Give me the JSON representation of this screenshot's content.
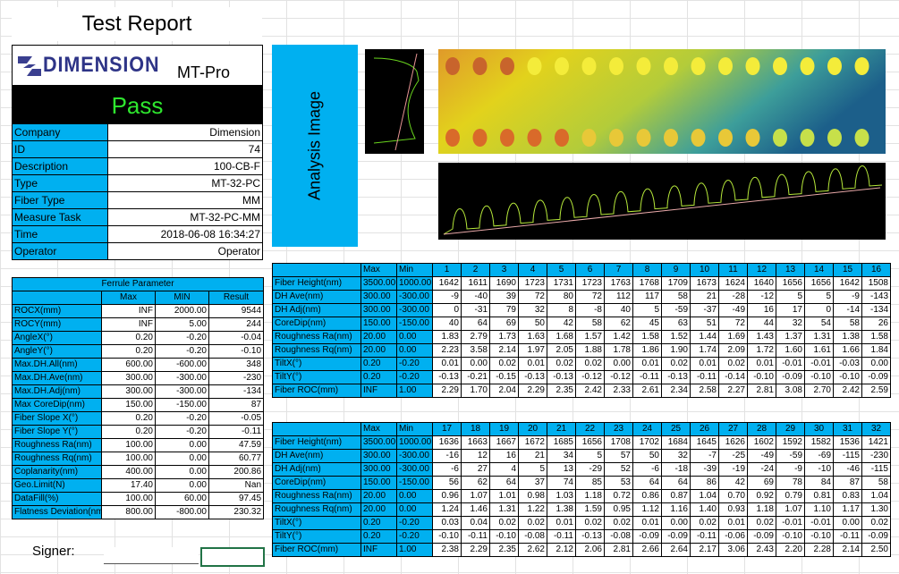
{
  "header": {
    "title": "Test Report",
    "logo": "DIMENSION",
    "model": "MT-Pro",
    "result": "Pass",
    "signer": "Signer:"
  },
  "info": [
    [
      "Company",
      "Dimension"
    ],
    [
      "ID",
      "74"
    ],
    [
      "Description",
      "100-CB-F"
    ],
    [
      "Type",
      "MT-32-PC"
    ],
    [
      "Fiber Type",
      "MM"
    ],
    [
      "Measure Task",
      "MT-32-PC-MM"
    ],
    [
      "Time",
      "2018-06-08 16:34:27"
    ],
    [
      "Operator",
      "Operator"
    ]
  ],
  "analysis_label": "Analysis Image",
  "ferrule": {
    "title": "Ferrule Parameter",
    "columns": [
      "Max",
      "MIN",
      "Result"
    ],
    "rows": [
      [
        "ROCX(mm)",
        "INF",
        "2000.00",
        "9544"
      ],
      [
        "ROCY(mm)",
        "INF",
        "5.00",
        "244"
      ],
      [
        "AngleX(°)",
        "0.20",
        "-0.20",
        "-0.04"
      ],
      [
        "AngleY(°)",
        "0.20",
        "-0.20",
        "-0.10"
      ],
      [
        "Max.DH.All(nm)",
        "600.00",
        "-600.00",
        "348"
      ],
      [
        "Max.DH.Ave(nm)",
        "300.00",
        "-300.00",
        "-230"
      ],
      [
        "Max.DH.Adj(nm)",
        "300.00",
        "-300.00",
        "-134"
      ],
      [
        "Max CoreDip(nm)",
        "150.00",
        "-150.00",
        "87"
      ],
      [
        "Fiber Slope X(°)",
        "0.20",
        "-0.20",
        "-0.05"
      ],
      [
        "Fiber Slope Y(°)",
        "0.20",
        "-0.20",
        "-0.11"
      ],
      [
        "Roughness Ra(nm)",
        "100.00",
        "0.00",
        "47.59"
      ],
      [
        "Roughness Rq(nm)",
        "100.00",
        "0.00",
        "60.77"
      ],
      [
        "Coplanarity(nm)",
        "400.00",
        "0.00",
        "200.86"
      ],
      [
        "Geo.Limit(N)",
        "17.40",
        "0.00",
        "Nan"
      ],
      [
        "DataFill(%)",
        "100.00",
        "60.00",
        "97.45"
      ],
      [
        "Flatness Deviation(nm)",
        "800.00",
        "-800.00",
        "230.32"
      ]
    ]
  },
  "fiber_tables": [
    {
      "columns": [
        "Max",
        "Min",
        "1",
        "2",
        "3",
        "4",
        "5",
        "6",
        "7",
        "8",
        "9",
        "10",
        "11",
        "12",
        "13",
        "14",
        "15",
        "16"
      ],
      "rows": [
        [
          "Fiber Height(nm)",
          "3500.00",
          "1000.00",
          "1642",
          "1611",
          "1690",
          "1723",
          "1731",
          "1723",
          "1763",
          "1768",
          "1709",
          "1673",
          "1624",
          "1640",
          "1656",
          "1656",
          "1642",
          "1508"
        ],
        [
          "DH Ave(nm)",
          "300.00",
          "-300.00",
          "-9",
          "-40",
          "39",
          "72",
          "80",
          "72",
          "112",
          "117",
          "58",
          "21",
          "-28",
          "-12",
          "5",
          "5",
          "-9",
          "-143"
        ],
        [
          "DH Adj(nm)",
          "300.00",
          "-300.00",
          "0",
          "-31",
          "79",
          "32",
          "8",
          "-8",
          "40",
          "5",
          "-59",
          "-37",
          "-49",
          "16",
          "17",
          "0",
          "-14",
          "-134"
        ],
        [
          "CoreDip(nm)",
          "150.00",
          "-150.00",
          "40",
          "64",
          "69",
          "50",
          "42",
          "58",
          "62",
          "45",
          "63",
          "51",
          "72",
          "44",
          "32",
          "54",
          "58",
          "26"
        ],
        [
          "Roughness Ra(nm)",
          "20.00",
          "0.00",
          "1.83",
          "2.79",
          "1.73",
          "1.63",
          "1.68",
          "1.57",
          "1.42",
          "1.58",
          "1.52",
          "1.44",
          "1.69",
          "1.43",
          "1.37",
          "1.31",
          "1.38",
          "1.58"
        ],
        [
          "Roughness Rq(nm)",
          "20.00",
          "0.00",
          "2.23",
          "3.58",
          "2.14",
          "1.97",
          "2.05",
          "1.88",
          "1.78",
          "1.86",
          "1.90",
          "1.74",
          "2.09",
          "1.72",
          "1.60",
          "1.61",
          "1.66",
          "1.84"
        ],
        [
          "TiltX(°)",
          "0.20",
          "-0.20",
          "0.01",
          "0.00",
          "0.02",
          "0.01",
          "0.02",
          "0.02",
          "0.00",
          "0.01",
          "0.02",
          "0.01",
          "0.02",
          "0.01",
          "-0.01",
          "-0.01",
          "-0.03",
          "0.00"
        ],
        [
          "TiltY(°)",
          "0.20",
          "-0.20",
          "-0.13",
          "-0.21",
          "-0.15",
          "-0.13",
          "-0.13",
          "-0.12",
          "-0.12",
          "-0.11",
          "-0.13",
          "-0.11",
          "-0.14",
          "-0.10",
          "-0.09",
          "-0.10",
          "-0.10",
          "-0.09"
        ],
        [
          "Fiber ROC(mm)",
          "INF",
          "1.00",
          "2.29",
          "1.70",
          "2.04",
          "2.29",
          "2.35",
          "2.42",
          "2.33",
          "2.61",
          "2.34",
          "2.58",
          "2.27",
          "2.81",
          "3.08",
          "2.70",
          "2.42",
          "2.59"
        ]
      ]
    },
    {
      "columns": [
        "Max",
        "Min",
        "17",
        "18",
        "19",
        "20",
        "21",
        "22",
        "23",
        "24",
        "25",
        "26",
        "27",
        "28",
        "29",
        "30",
        "31",
        "32"
      ],
      "rows": [
        [
          "Fiber Height(nm)",
          "3500.00",
          "1000.00",
          "1636",
          "1663",
          "1667",
          "1672",
          "1685",
          "1656",
          "1708",
          "1702",
          "1684",
          "1645",
          "1626",
          "1602",
          "1592",
          "1582",
          "1536",
          "1421"
        ],
        [
          "DH Ave(nm)",
          "300.00",
          "-300.00",
          "-16",
          "12",
          "16",
          "21",
          "34",
          "5",
          "57",
          "50",
          "32",
          "-7",
          "-25",
          "-49",
          "-59",
          "-69",
          "-115",
          "-230"
        ],
        [
          "DH Adj(nm)",
          "300.00",
          "-300.00",
          "-6",
          "27",
          "4",
          "5",
          "13",
          "-29",
          "52",
          "-6",
          "-18",
          "-39",
          "-19",
          "-24",
          "-9",
          "-10",
          "-46",
          "-115"
        ],
        [
          "CoreDip(nm)",
          "150.00",
          "-150.00",
          "56",
          "62",
          "64",
          "37",
          "74",
          "85",
          "53",
          "64",
          "64",
          "86",
          "42",
          "69",
          "78",
          "84",
          "87",
          "58"
        ],
        [
          "Roughness Ra(nm)",
          "20.00",
          "0.00",
          "0.96",
          "1.07",
          "1.01",
          "0.98",
          "1.03",
          "1.18",
          "0.72",
          "0.86",
          "0.87",
          "1.04",
          "0.70",
          "0.92",
          "0.79",
          "0.81",
          "0.83",
          "1.04"
        ],
        [
          "Roughness Rq(nm)",
          "20.00",
          "0.00",
          "1.24",
          "1.46",
          "1.31",
          "1.22",
          "1.38",
          "1.59",
          "0.95",
          "1.12",
          "1.16",
          "1.40",
          "0.93",
          "1.18",
          "1.07",
          "1.10",
          "1.17",
          "1.30"
        ],
        [
          "TiltX(°)",
          "0.20",
          "-0.20",
          "0.03",
          "0.04",
          "0.02",
          "0.02",
          "0.01",
          "0.02",
          "0.02",
          "0.01",
          "0.00",
          "0.02",
          "0.01",
          "0.02",
          "-0.01",
          "-0.01",
          "0.00",
          "0.02"
        ],
        [
          "TiltY(°)",
          "0.20",
          "-0.20",
          "-0.10",
          "-0.11",
          "-0.10",
          "-0.08",
          "-0.11",
          "-0.13",
          "-0.08",
          "-0.09",
          "-0.09",
          "-0.11",
          "-0.06",
          "-0.09",
          "-0.10",
          "-0.10",
          "-0.11",
          "-0.09"
        ],
        [
          "Fiber ROC(mm)",
          "INF",
          "1.00",
          "2.38",
          "2.29",
          "2.35",
          "2.62",
          "2.12",
          "2.06",
          "2.81",
          "2.66",
          "2.64",
          "2.17",
          "3.06",
          "2.43",
          "2.20",
          "2.28",
          "2.14",
          "2.50"
        ]
      ]
    }
  ]
}
